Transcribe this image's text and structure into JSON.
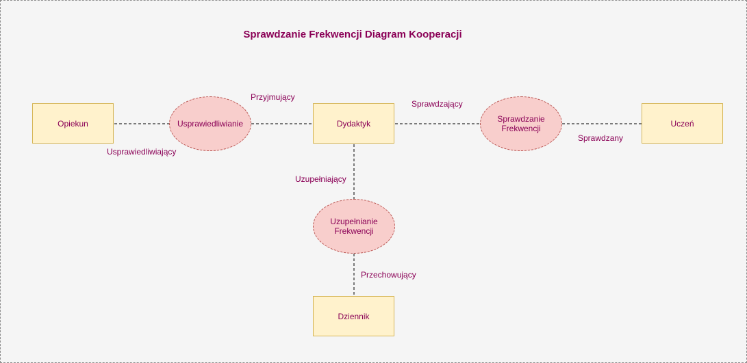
{
  "title": "Sprawdzanie Frekwencji Diagram Kooperacji",
  "colors": {
    "actor_fill": "#fff2cc",
    "actor_border": "#d6b656",
    "usecase_fill": "#f8cecc",
    "usecase_border": "#b85450",
    "text": "#8a0056",
    "background": "#f5f5f5"
  },
  "actors": {
    "opiekun": "Opiekun",
    "dydaktyk": "Dydaktyk",
    "uczen": "Uczeń",
    "dziennik": "Dziennik"
  },
  "usecases": {
    "usprawiedliwianie": "Usprawiedliwianie",
    "sprawdzanie": "Sprawdzanie\nFrekwencji",
    "uzupelnianie": "Uzupełnianie\nFrekwencji"
  },
  "roles": {
    "przyjmujacy": "Przyjmujący",
    "usprawiedliwiajacy": "Usprawiedliwiający",
    "sprawdzajacy": "Sprawdzający",
    "sprawdzany": "Sprawdzany",
    "uzupelniajacy": "Uzupełniający",
    "przechowujacy": "Przechowujący"
  }
}
